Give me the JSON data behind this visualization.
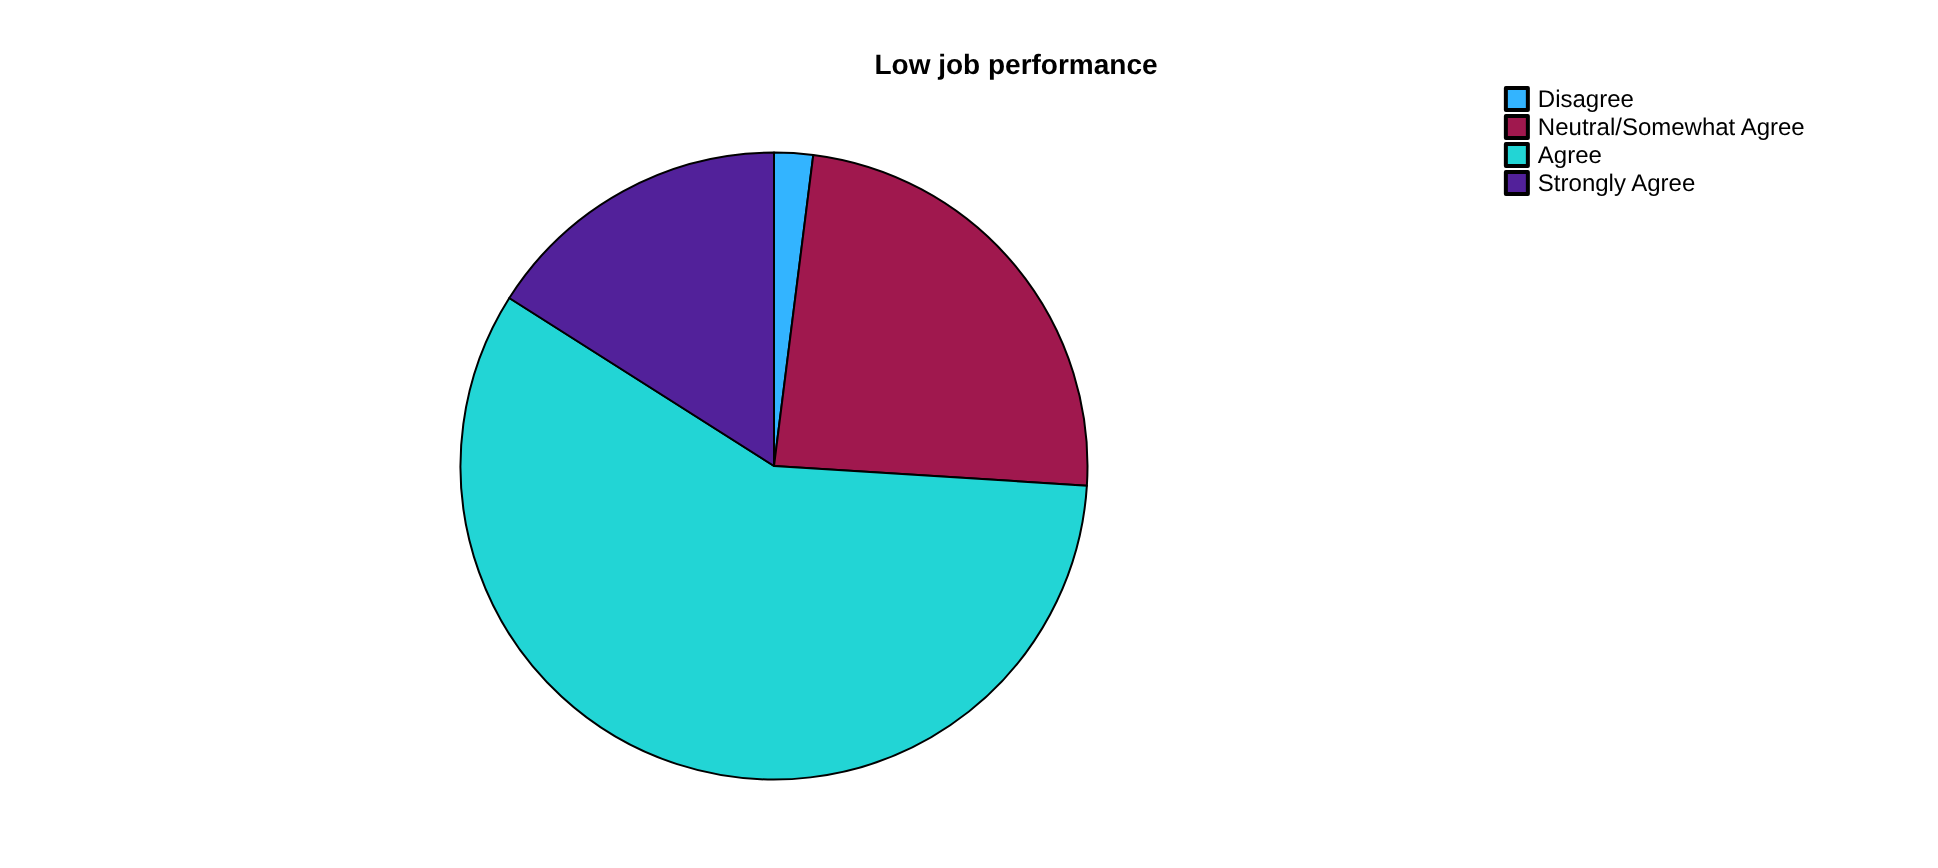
{
  "chart_data": {
    "type": "pie",
    "title": "Low job performance",
    "categories": [
      "Disagree",
      "Neutral/Somewhat Agree",
      "Agree",
      "Strongly Agree"
    ],
    "values": [
      2,
      24,
      58,
      16
    ],
    "colors": [
      "#33b4ff",
      "#a0184e",
      "#22d5d5",
      "#52219a"
    ],
    "legend": "top right"
  }
}
